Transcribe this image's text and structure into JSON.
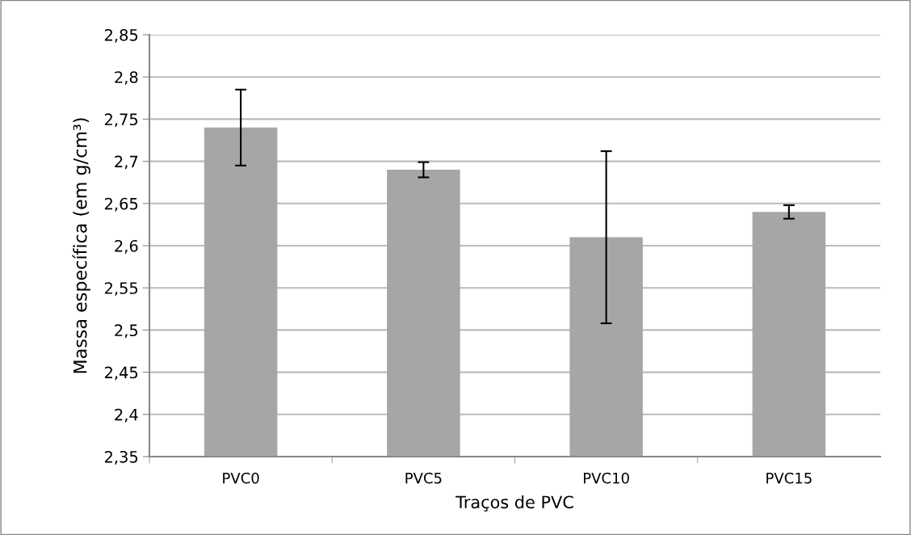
{
  "chart_data": {
    "type": "bar",
    "xlabel": "Traços de PVC",
    "ylabel": "Massa específica (em g/cm³)",
    "categories": [
      "PVC0",
      "PVC5",
      "PVC10",
      "PVC15"
    ],
    "values": [
      2.74,
      2.69,
      2.61,
      2.64
    ],
    "errors": [
      0.045,
      0.009,
      0.102,
      0.008
    ],
    "color": "#a6a6a6",
    "ylim": [
      2.35,
      2.85
    ],
    "yticks": [
      {
        "value": 2.35,
        "label": "2,35"
      },
      {
        "value": 2.4,
        "label": "2,4"
      },
      {
        "value": 2.45,
        "label": "2,45"
      },
      {
        "value": 2.5,
        "label": "2,5"
      },
      {
        "value": 2.55,
        "label": "2,55"
      },
      {
        "value": 2.6,
        "label": "2,6"
      },
      {
        "value": 2.65,
        "label": "2,65"
      },
      {
        "value": 2.7,
        "label": "2,7"
      },
      {
        "value": 2.75,
        "label": "2,75"
      },
      {
        "value": 2.8,
        "label": "2,8"
      },
      {
        "value": 2.85,
        "label": "2,85"
      }
    ],
    "grid": "y"
  }
}
